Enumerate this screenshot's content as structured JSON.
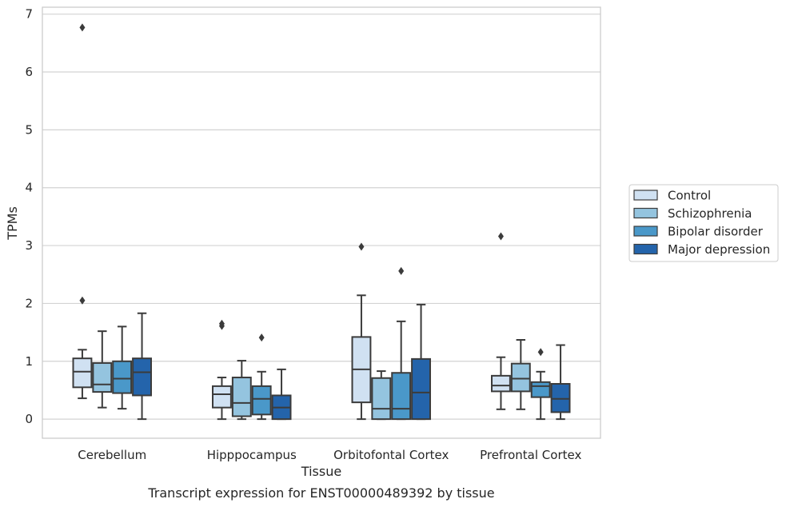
{
  "caption": "Transcript expression for ENST00000489392 by tissue",
  "chart_data": {
    "type": "box",
    "xlabel": "Tissue",
    "ylabel": "TPMs",
    "ylim": [
      -0.33,
      7.12
    ],
    "yticks": [
      0,
      1,
      2,
      3,
      4,
      5,
      6,
      7
    ],
    "grid": "horizontal",
    "legend_position": "right",
    "categories": [
      "Cerebellum",
      "Hipppocampus",
      "Orbitofontal Cortex",
      "Prefrontal Cortex"
    ],
    "series": [
      {
        "name": "Control",
        "color": "#d0e1f2",
        "boxes": [
          {
            "whislo": 0.36,
            "q1": 0.55,
            "med": 0.82,
            "q3": 1.05,
            "whishi": 1.2,
            "fliers": [
              6.77,
              2.05
            ]
          },
          {
            "whislo": 0.0,
            "q1": 0.2,
            "med": 0.43,
            "q3": 0.57,
            "whishi": 0.72,
            "fliers": [
              1.61,
              1.65
            ]
          },
          {
            "whislo": 0.0,
            "q1": 0.29,
            "med": 0.86,
            "q3": 1.42,
            "whishi": 2.14,
            "fliers": [
              2.98
            ]
          },
          {
            "whislo": 0.17,
            "q1": 0.48,
            "med": 0.58,
            "q3": 0.75,
            "whishi": 1.07,
            "fliers": [
              3.16
            ]
          }
        ]
      },
      {
        "name": "Schizophrenia",
        "color": "#94c4df",
        "boxes": [
          {
            "whislo": 0.2,
            "q1": 0.47,
            "med": 0.6,
            "q3": 0.97,
            "whishi": 1.52,
            "fliers": []
          },
          {
            "whislo": 0.0,
            "q1": 0.05,
            "med": 0.28,
            "q3": 0.72,
            "whishi": 1.01,
            "fliers": []
          },
          {
            "whislo": 0.0,
            "q1": 0.0,
            "med": 0.18,
            "q3": 0.71,
            "whishi": 0.83,
            "fliers": []
          },
          {
            "whislo": 0.17,
            "q1": 0.48,
            "med": 0.7,
            "q3": 0.96,
            "whishi": 1.37,
            "fliers": []
          }
        ]
      },
      {
        "name": "Bipolar disorder",
        "color": "#4a98c9",
        "boxes": [
          {
            "whislo": 0.18,
            "q1": 0.45,
            "med": 0.7,
            "q3": 1.0,
            "whishi": 1.6,
            "fliers": []
          },
          {
            "whislo": 0.0,
            "q1": 0.08,
            "med": 0.35,
            "q3": 0.57,
            "whishi": 0.82,
            "fliers": [
              1.41
            ]
          },
          {
            "whislo": 0.0,
            "q1": 0.0,
            "med": 0.18,
            "q3": 0.8,
            "whishi": 1.69,
            "fliers": [
              2.56
            ]
          },
          {
            "whislo": 0.0,
            "q1": 0.38,
            "med": 0.57,
            "q3": 0.64,
            "whishi": 0.82,
            "fliers": [
              1.16
            ]
          }
        ]
      },
      {
        "name": "Major depression",
        "color": "#2464ab",
        "boxes": [
          {
            "whislo": 0.0,
            "q1": 0.41,
            "med": 0.81,
            "q3": 1.05,
            "whishi": 1.83,
            "fliers": []
          },
          {
            "whislo": 0.0,
            "q1": 0.0,
            "med": 0.2,
            "q3": 0.41,
            "whishi": 0.86,
            "fliers": []
          },
          {
            "whislo": 0.0,
            "q1": 0.0,
            "med": 0.46,
            "q3": 1.04,
            "whishi": 1.98,
            "fliers": []
          },
          {
            "whislo": 0.0,
            "q1": 0.12,
            "med": 0.35,
            "q3": 0.61,
            "whishi": 1.28,
            "fliers": []
          }
        ]
      }
    ]
  }
}
